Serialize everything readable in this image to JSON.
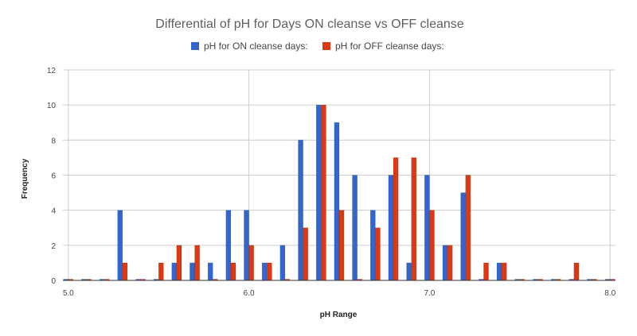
{
  "chart_data": {
    "type": "bar",
    "title": "Differential of pH for Days ON cleanse vs OFF cleanse",
    "xlabel": "pH Range",
    "ylabel": "Frequency",
    "x": [
      5.0,
      5.1,
      5.2,
      5.3,
      5.4,
      5.5,
      5.6,
      5.7,
      5.8,
      5.9,
      6.0,
      6.1,
      6.2,
      6.3,
      6.4,
      6.5,
      6.6,
      6.7,
      6.8,
      6.9,
      7.0,
      7.1,
      7.2,
      7.3,
      7.4,
      7.5,
      7.6,
      7.7,
      7.8,
      7.9,
      8.0
    ],
    "series": [
      {
        "name": "pH for ON cleanse days:",
        "color": "#3366cc",
        "values": [
          0,
          0,
          0,
          4,
          0,
          0,
          1,
          1,
          1,
          4,
          4,
          1,
          2,
          8,
          10,
          9,
          6,
          4,
          6,
          1,
          6,
          2,
          5,
          0,
          1,
          0,
          0,
          0,
          0,
          0,
          0
        ]
      },
      {
        "name": "pH for OFF cleanse days:",
        "color": "#dc3912",
        "values": [
          0,
          0,
          0,
          1,
          0,
          1,
          2,
          2,
          0,
          1,
          2,
          1,
          0,
          3,
          10,
          4,
          0,
          3,
          7,
          7,
          4,
          2,
          6,
          1,
          1,
          0,
          0,
          0,
          1,
          0,
          0
        ]
      }
    ],
    "xlim": [
      4.97,
      8.03
    ],
    "ylim": [
      0,
      12
    ],
    "yticks": [
      0,
      2,
      4,
      6,
      8,
      10,
      12
    ],
    "xticks": [
      "5.0",
      "6.0",
      "7.0",
      "8.0"
    ],
    "grid": true,
    "legend": "top"
  }
}
